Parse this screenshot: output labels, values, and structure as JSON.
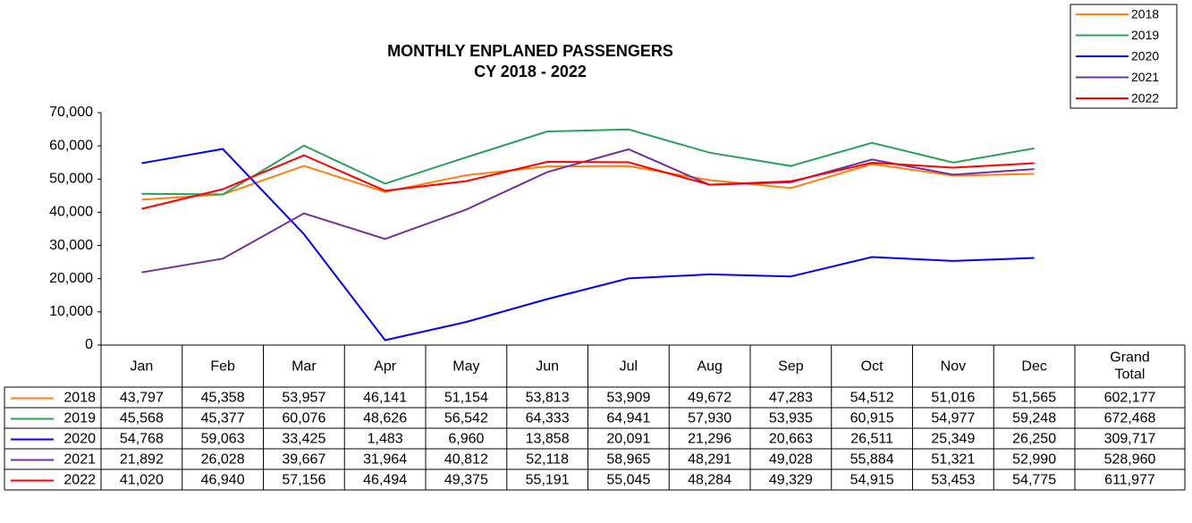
{
  "chart_data": {
    "type": "line",
    "title": "MONTHLY ENPLANED PASSENGERS",
    "subtitle": "CY 2018 - 2022",
    "categories": [
      "Jan",
      "Feb",
      "Mar",
      "Apr",
      "May",
      "Jun",
      "Jul",
      "Aug",
      "Sep",
      "Oct",
      "Nov",
      "Dec"
    ],
    "total_header": "Grand Total",
    "ylim": [
      0,
      70000
    ],
    "yticks": [
      0,
      {
        "value": 10000,
        "label": "10,000"
      },
      {
        "value": 20000,
        "label": "20,000"
      },
      {
        "value": 30000,
        "label": "30,000"
      },
      {
        "value": 40000,
        "label": "40,000"
      },
      {
        "value": 50000,
        "label": "50,000"
      },
      {
        "value": 60000,
        "label": "60,000"
      },
      {
        "value": 70000,
        "label": "70,000"
      }
    ],
    "grid": false,
    "legend": "top-right",
    "series": [
      {
        "name": "2018",
        "color": "#ff7f0e",
        "values": [
          43797,
          45358,
          53957,
          46141,
          51154,
          53813,
          53909,
          49672,
          47283,
          54512,
          51016,
          51565
        ],
        "value_labels": [
          "43,797",
          "45,358",
          "53,957",
          "46,141",
          "51,154",
          "53,813",
          "53,909",
          "49,672",
          "47,283",
          "54,512",
          "51,016",
          "51,565"
        ],
        "total": {
          "value": 602177,
          "label": "602,177"
        }
      },
      {
        "name": "2019",
        "color": "#2ca05a",
        "values": [
          45568,
          45377,
          60076,
          48626,
          56542,
          64333,
          64941,
          57930,
          53935,
          60915,
          54977,
          59248
        ],
        "value_labels": [
          "45,568",
          "45,377",
          "60,076",
          "48,626",
          "56,542",
          "64,333",
          "64,941",
          "57,930",
          "53,935",
          "60,915",
          "54,977",
          "59,248"
        ],
        "total": {
          "value": 672468,
          "label": "672,468"
        }
      },
      {
        "name": "2020",
        "color": "#0000ff",
        "values": [
          54768,
          59063,
          33425,
          1483,
          6960,
          13858,
          20091,
          21296,
          20663,
          26511,
          25349,
          26250
        ],
        "value_labels": [
          "54,768",
          "59,063",
          "33,425",
          "1,483",
          "6,960",
          "13,858",
          "20,091",
          "21,296",
          "20,663",
          "26,511",
          "25,349",
          "26,250"
        ],
        "total": {
          "value": 309717,
          "label": "309,717"
        }
      },
      {
        "name": "2021",
        "color": "#7030a0",
        "values": [
          21892,
          26028,
          39667,
          31964,
          40812,
          52118,
          58965,
          48291,
          49028,
          55884,
          51321,
          52990
        ],
        "value_labels": [
          "21,892",
          "26,028",
          "39,667",
          "31,964",
          "40,812",
          "52,118",
          "58,965",
          "48,291",
          "49,028",
          "55,884",
          "51,321",
          "52,990"
        ],
        "total": {
          "value": 528960,
          "label": "528,960"
        }
      },
      {
        "name": "2022",
        "color": "#ff0000",
        "values": [
          41020,
          46940,
          57156,
          46494,
          49375,
          55191,
          55045,
          48284,
          49329,
          54915,
          53453,
          54775
        ],
        "value_labels": [
          "41,020",
          "46,940",
          "57,156",
          "46,494",
          "49,375",
          "55,191",
          "55,045",
          "48,284",
          "49,329",
          "54,915",
          "53,453",
          "54,775"
        ],
        "total": {
          "value": 611977,
          "label": "611,977"
        }
      }
    ]
  }
}
